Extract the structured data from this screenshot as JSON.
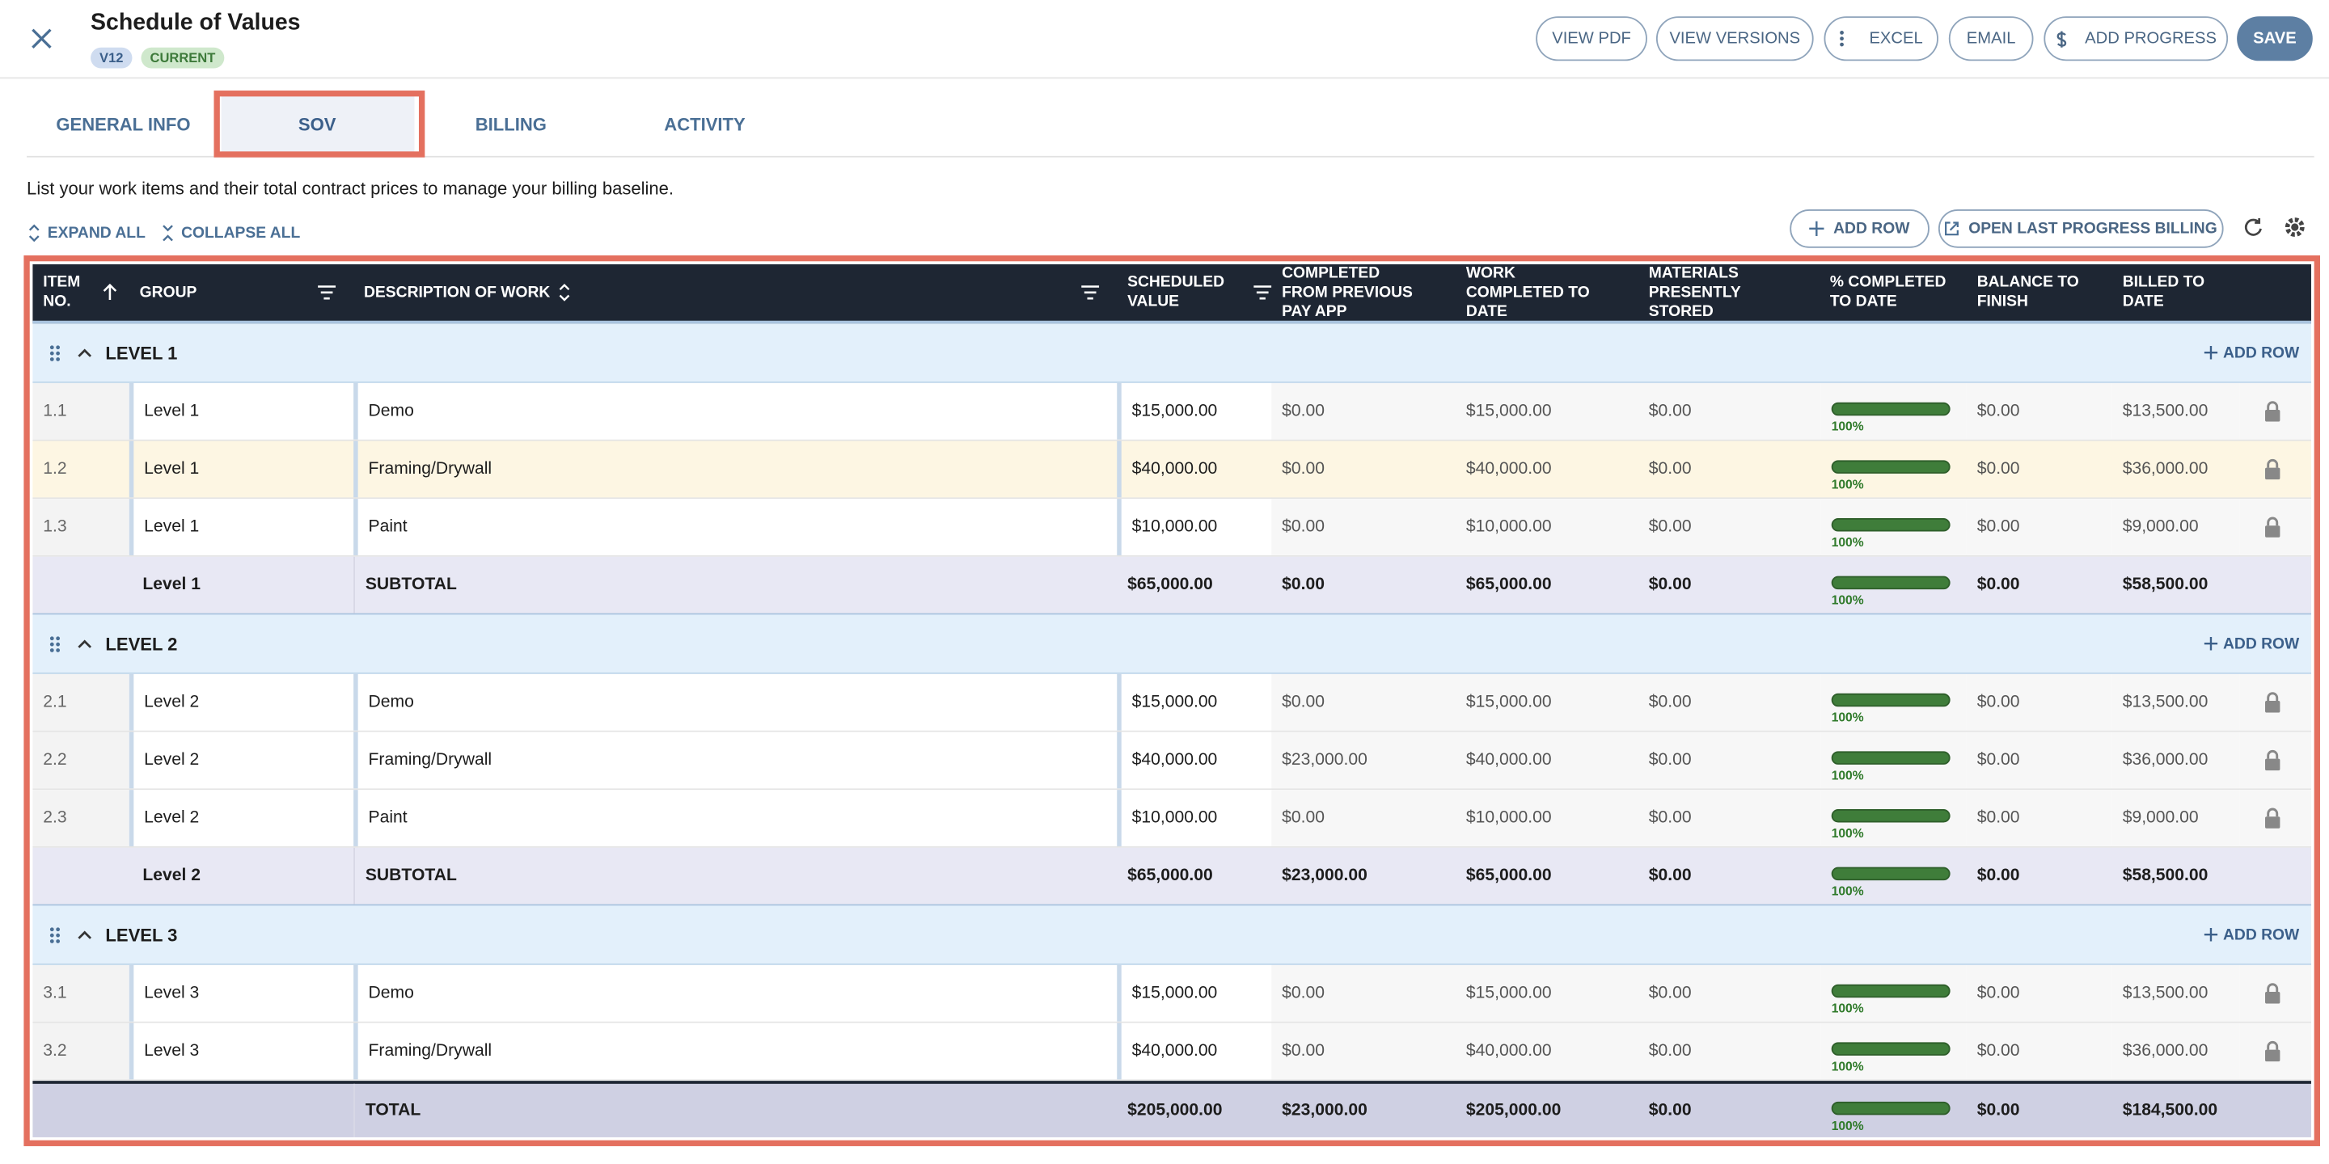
{
  "header": {
    "title": "Schedule of Values",
    "version": "V12",
    "status": "CURRENT",
    "buttons": [
      "VIEW PDF",
      "VIEW VERSIONS",
      "EXCEL",
      "EMAIL",
      "ADD PROGRESS",
      "SAVE"
    ]
  },
  "tabs": [
    "GENERAL INFO",
    "SOV",
    "BILLING",
    "ACTIVITY"
  ],
  "description": "List your work items and their total contract prices to manage your billing baseline.",
  "toolbar": {
    "expand_all": "EXPAND ALL",
    "collapse_all": "COLLAPSE ALL",
    "add_row": "ADD ROW",
    "open_last": "OPEN LAST PROGRESS BILLING"
  },
  "table": {
    "columns": [
      "ITEM NO.",
      "GROUP",
      "DESCRIPTION OF WORK",
      "SCHEDULED VALUE",
      "COMPLETED FROM PREVIOUS PAY APP",
      "WORK COMPLETED TO DATE",
      "MATERIALS PRESENTLY STORED",
      "% COMPLETED TO DATE",
      "BALANCE TO FINISH",
      "BILLED TO DATE"
    ],
    "groups": [
      {
        "label": "LEVEL 1",
        "add_row": "ADD ROW",
        "rows": [
          {
            "item": "1.1",
            "group": "Level 1",
            "description": "Demo",
            "values": [
              "$15,000.00",
              "$0.00",
              "$15,000.00",
              "$0.00",
              "$0.00",
              "$13,500.00"
            ],
            "percent": "100%"
          },
          {
            "item": "1.2",
            "group": "Level 1",
            "description": "Framing/Drywall",
            "values": [
              "$40,000.00",
              "$0.00",
              "$40,000.00",
              "$0.00",
              "$0.00",
              "$36,000.00"
            ],
            "percent": "100%"
          },
          {
            "item": "1.3",
            "group": "Level 1",
            "description": "Paint",
            "values": [
              "$10,000.00",
              "$0.00",
              "$10,000.00",
              "$0.00",
              "$0.00",
              "$9,000.00"
            ],
            "percent": "100%"
          }
        ],
        "subtotal": {
          "group": "Level 1",
          "label": "SUBTOTAL",
          "values": [
            "$65,000.00",
            "$0.00",
            "$65,000.00",
            "$0.00",
            "$0.00",
            "$58,500.00"
          ],
          "percent": "100%"
        }
      },
      {
        "label": "LEVEL 2",
        "add_row": "ADD ROW",
        "rows": [
          {
            "item": "2.1",
            "group": "Level 2",
            "description": "Demo",
            "values": [
              "$15,000.00",
              "$0.00",
              "$15,000.00",
              "$0.00",
              "$0.00",
              "$13,500.00"
            ],
            "percent": "100%"
          },
          {
            "item": "2.2",
            "group": "Level 2",
            "description": "Framing/Drywall",
            "values": [
              "$40,000.00",
              "$23,000.00",
              "$40,000.00",
              "$0.00",
              "$0.00",
              "$36,000.00"
            ],
            "percent": "100%"
          },
          {
            "item": "2.3",
            "group": "Level 2",
            "description": "Paint",
            "values": [
              "$10,000.00",
              "$0.00",
              "$10,000.00",
              "$0.00",
              "$0.00",
              "$9,000.00"
            ],
            "percent": "100%"
          }
        ],
        "subtotal": {
          "group": "Level 2",
          "label": "SUBTOTAL",
          "values": [
            "$65,000.00",
            "$23,000.00",
            "$65,000.00",
            "$0.00",
            "$0.00",
            "$58,500.00"
          ],
          "percent": "100%"
        }
      },
      {
        "label": "LEVEL 3",
        "add_row": "ADD ROW",
        "rows": [
          {
            "item": "3.1",
            "group": "Level 3",
            "description": "Demo",
            "values": [
              "$15,000.00",
              "$0.00",
              "$15,000.00",
              "$0.00",
              "$0.00",
              "$13,500.00"
            ],
            "percent": "100%"
          },
          {
            "item": "3.2",
            "group": "Level 3",
            "description": "Framing/Drywall",
            "values": [
              "$40,000.00",
              "$0.00",
              "$40,000.00",
              "$0.00",
              "$0.00",
              "$36,000.00"
            ],
            "percent": "100%"
          }
        ]
      }
    ],
    "total": {
      "label": "TOTAL",
      "values": [
        "$205,000.00",
        "$23,000.00",
        "$205,000.00",
        "$0.00",
        "$0.00",
        "$184,500.00"
      ],
      "percent": "100%"
    }
  }
}
